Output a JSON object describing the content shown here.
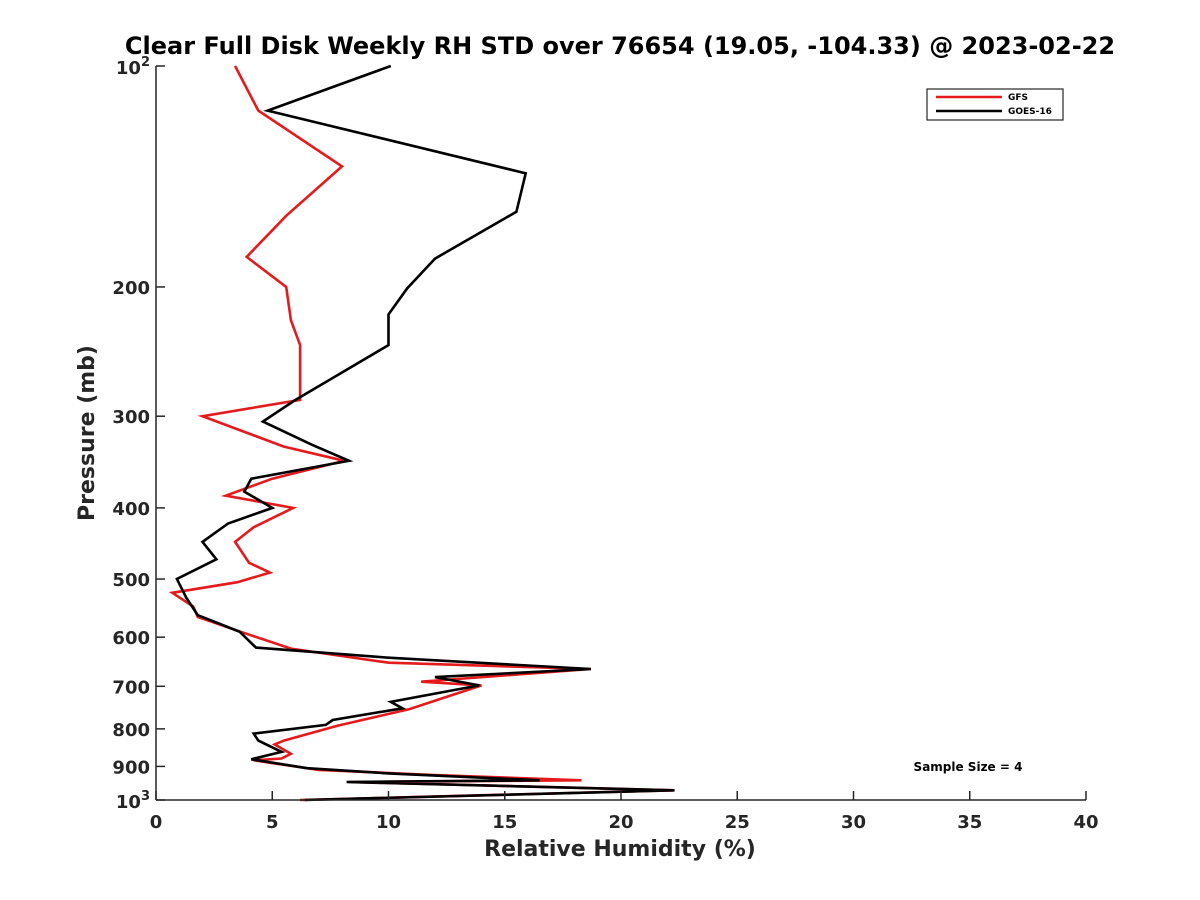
{
  "chart_data": {
    "type": "line",
    "title": "Clear Full Disk Weekly RH STD over 76654 (19.05, -104.33) @ 2023-02-22",
    "xlabel": "Relative Humidity (%)",
    "ylabel": "Pressure (mb)",
    "xlim": [
      0,
      40
    ],
    "ylim": [
      100,
      1000
    ],
    "yscale": "log",
    "y_reversed": true,
    "x_ticks": [
      0,
      5,
      10,
      15,
      20,
      25,
      30,
      35,
      40
    ],
    "x_tick_labels": [
      "0",
      "5",
      "10",
      "15",
      "20",
      "25",
      "30",
      "35",
      "40"
    ],
    "y_ticks": [
      200,
      300,
      400,
      500,
      600,
      700,
      800,
      900
    ],
    "y_tick_labels": [
      "200",
      "300",
      "400",
      "500",
      "600",
      "700",
      "800",
      "900"
    ],
    "y_end_ticks": [
      {
        "value": 100,
        "base": "10",
        "exp": "2"
      },
      {
        "value": 1000,
        "base": "10",
        "exp": "3"
      }
    ],
    "legend_position": "top-right",
    "annotation": "Sample Size = 4",
    "series": [
      {
        "name": "GFS",
        "color": "#e41a1c",
        "points": [
          [
            3.4,
            100
          ],
          [
            4.4,
            115
          ],
          [
            8.0,
            137
          ],
          [
            5.6,
            160
          ],
          [
            3.9,
            182
          ],
          [
            5.6,
            200
          ],
          [
            5.8,
            222
          ],
          [
            6.2,
            240
          ],
          [
            6.2,
            285
          ],
          [
            2.0,
            300
          ],
          [
            5.5,
            330
          ],
          [
            8.1,
            345
          ],
          [
            5.0,
            365
          ],
          [
            3.0,
            385
          ],
          [
            5.9,
            400
          ],
          [
            4.2,
            425
          ],
          [
            3.4,
            445
          ],
          [
            4.0,
            475
          ],
          [
            4.9,
            490
          ],
          [
            3.5,
            505
          ],
          [
            0.7,
            522
          ],
          [
            1.6,
            545
          ],
          [
            1.8,
            563
          ],
          [
            3.5,
            588
          ],
          [
            5.8,
            622
          ],
          [
            10.0,
            650
          ],
          [
            18.7,
            663
          ],
          [
            11.4,
            690
          ],
          [
            14.0,
            698
          ],
          [
            10.9,
            752
          ],
          [
            8.5,
            783
          ],
          [
            7.8,
            792
          ],
          [
            5.5,
            830
          ],
          [
            5.1,
            840
          ],
          [
            5.8,
            865
          ],
          [
            5.4,
            878
          ],
          [
            4.2,
            883
          ],
          [
            7.0,
            910
          ],
          [
            12.0,
            925
          ],
          [
            18.3,
            940
          ],
          [
            8.3,
            945
          ],
          [
            22.3,
            970
          ],
          [
            6.2,
            1000
          ]
        ]
      },
      {
        "name": "GOES-16",
        "color": "#000000",
        "points": [
          [
            10.1,
            100
          ],
          [
            4.8,
            115
          ],
          [
            15.9,
            140
          ],
          [
            15.5,
            158
          ],
          [
            12.0,
            183
          ],
          [
            10.8,
            201
          ],
          [
            10.0,
            218
          ],
          [
            10.0,
            240
          ],
          [
            6.0,
            285
          ],
          [
            4.6,
            305
          ],
          [
            6.7,
            328
          ],
          [
            8.3,
            345
          ],
          [
            4.1,
            365
          ],
          [
            3.8,
            380
          ],
          [
            5.0,
            400
          ],
          [
            3.1,
            420
          ],
          [
            2.0,
            445
          ],
          [
            2.6,
            470
          ],
          [
            0.9,
            500
          ],
          [
            1.3,
            530
          ],
          [
            1.8,
            560
          ],
          [
            3.6,
            590
          ],
          [
            4.3,
            620
          ],
          [
            10.0,
            640
          ],
          [
            18.7,
            663
          ],
          [
            12.0,
            680
          ],
          [
            13.9,
            698
          ],
          [
            10.1,
            735
          ],
          [
            10.6,
            750
          ],
          [
            7.6,
            778
          ],
          [
            7.3,
            790
          ],
          [
            4.2,
            812
          ],
          [
            4.4,
            830
          ],
          [
            5.4,
            860
          ],
          [
            4.1,
            880
          ],
          [
            6.5,
            905
          ],
          [
            10.0,
            920
          ],
          [
            16.5,
            940
          ],
          [
            8.2,
            945
          ],
          [
            22.3,
            970
          ],
          [
            6.4,
            1000
          ]
        ]
      }
    ]
  }
}
